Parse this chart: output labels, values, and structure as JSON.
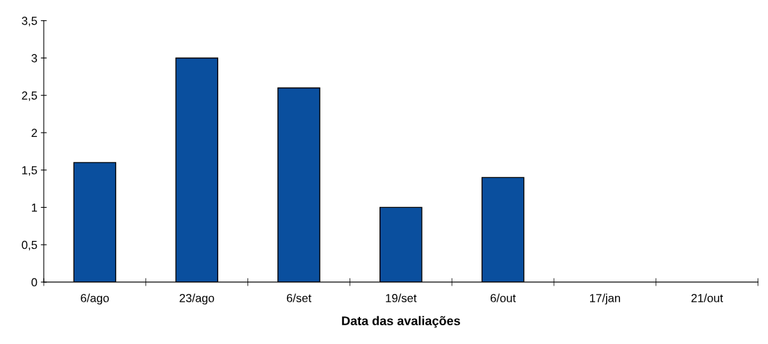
{
  "chart_data": {
    "type": "bar",
    "xlabel": "Data das avaliações",
    "categories": [
      "6/ago",
      "23/ago",
      "6/set",
      "19/set",
      "6/out",
      "17/jan",
      "21/out"
    ],
    "values": [
      1.6,
      3.0,
      2.6,
      1.0,
      1.4,
      null,
      null
    ],
    "color": "#0a4f9e",
    "ylim": [
      0,
      3.5
    ],
    "yticks": [
      0,
      {
        "value": 0.5,
        "label": "0,5"
      },
      1,
      {
        "value": 1.5,
        "label": "1,5"
      },
      2,
      {
        "value": 2.5,
        "label": "2,5"
      },
      3,
      {
        "value": 3.5,
        "label": "3,5"
      }
    ],
    "grid": false,
    "legend": false
  }
}
